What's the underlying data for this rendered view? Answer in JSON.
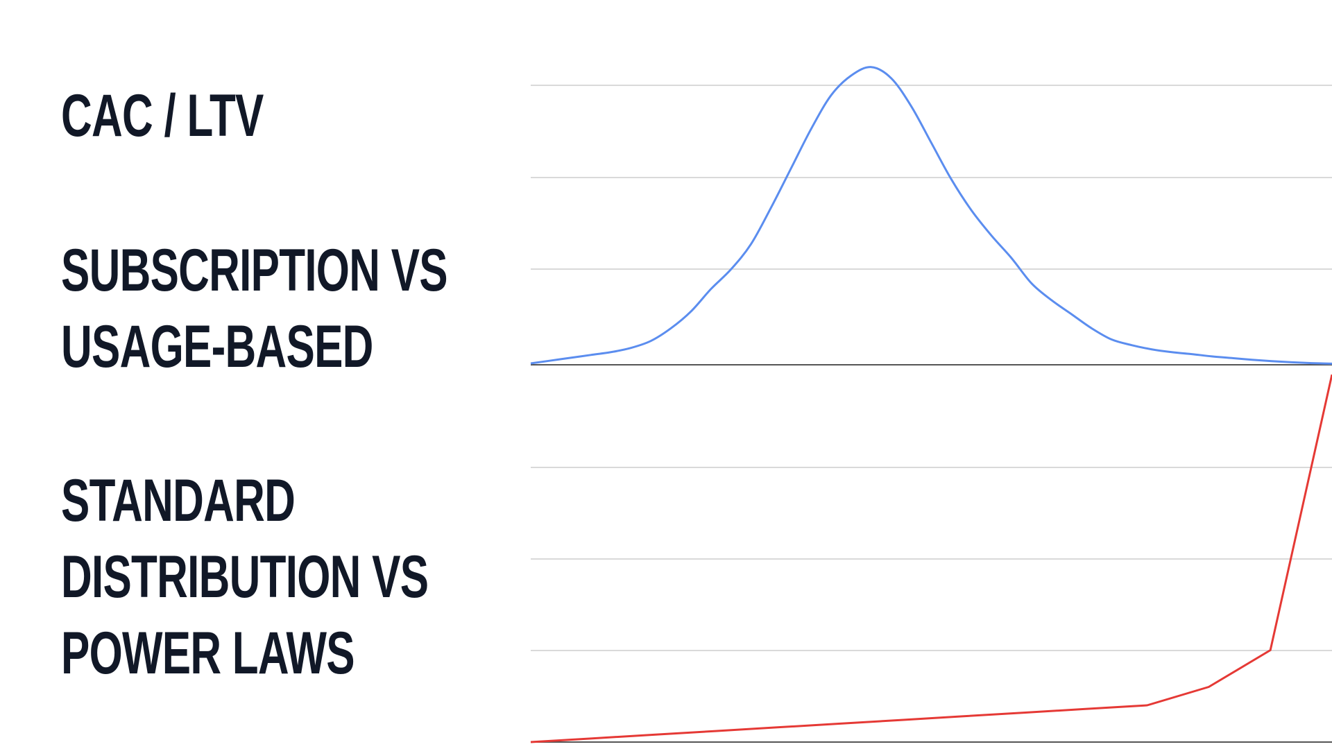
{
  "slide": {
    "headings": [
      {
        "lines": [
          "CAC / LTV"
        ]
      },
      {
        "lines": [
          "SUBSCRIPTION VS",
          "USAGE-BASED"
        ]
      },
      {
        "lines": [
          "STANDARD",
          "DISTRIBUTION VS",
          "POWER LAWS"
        ]
      }
    ]
  },
  "chart_data": [
    {
      "type": "line",
      "description_series": "normal-distribution",
      "color": "#5b8def",
      "x": [
        0,
        1,
        2,
        3,
        4,
        5,
        6,
        7,
        8,
        9,
        10,
        11,
        12,
        13,
        14,
        15,
        16,
        17,
        18,
        19,
        20,
        21,
        22,
        23,
        24,
        25,
        26,
        27,
        28,
        29,
        30,
        31,
        32,
        33,
        34,
        35,
        36,
        37,
        38,
        39,
        40
      ],
      "values": [
        0.05,
        0.15,
        0.25,
        0.35,
        0.45,
        0.6,
        0.85,
        1.3,
        1.9,
        2.7,
        3.4,
        4.3,
        5.6,
        7.0,
        8.4,
        9.6,
        10.3,
        10.6,
        10.2,
        9.2,
        7.9,
        6.6,
        5.5,
        4.6,
        3.8,
        2.9,
        2.3,
        1.8,
        1.3,
        0.9,
        0.7,
        0.55,
        0.45,
        0.38,
        0.3,
        0.24,
        0.18,
        0.13,
        0.09,
        0.06,
        0.04
      ],
      "ylim": [
        0,
        12
      ],
      "grid": true
    },
    {
      "type": "line",
      "description_series": "power-law",
      "color": "#e53935",
      "x": [
        0,
        1,
        2,
        3,
        4,
        5,
        6,
        7,
        8,
        9,
        10,
        11,
        12,
        13
      ],
      "values": [
        0,
        0.1,
        0.2,
        0.3,
        0.4,
        0.5,
        0.6,
        0.7,
        0.8,
        0.9,
        1.0,
        1.5,
        2.5,
        10.0
      ],
      "ylim": [
        0,
        10
      ],
      "grid": true
    }
  ]
}
